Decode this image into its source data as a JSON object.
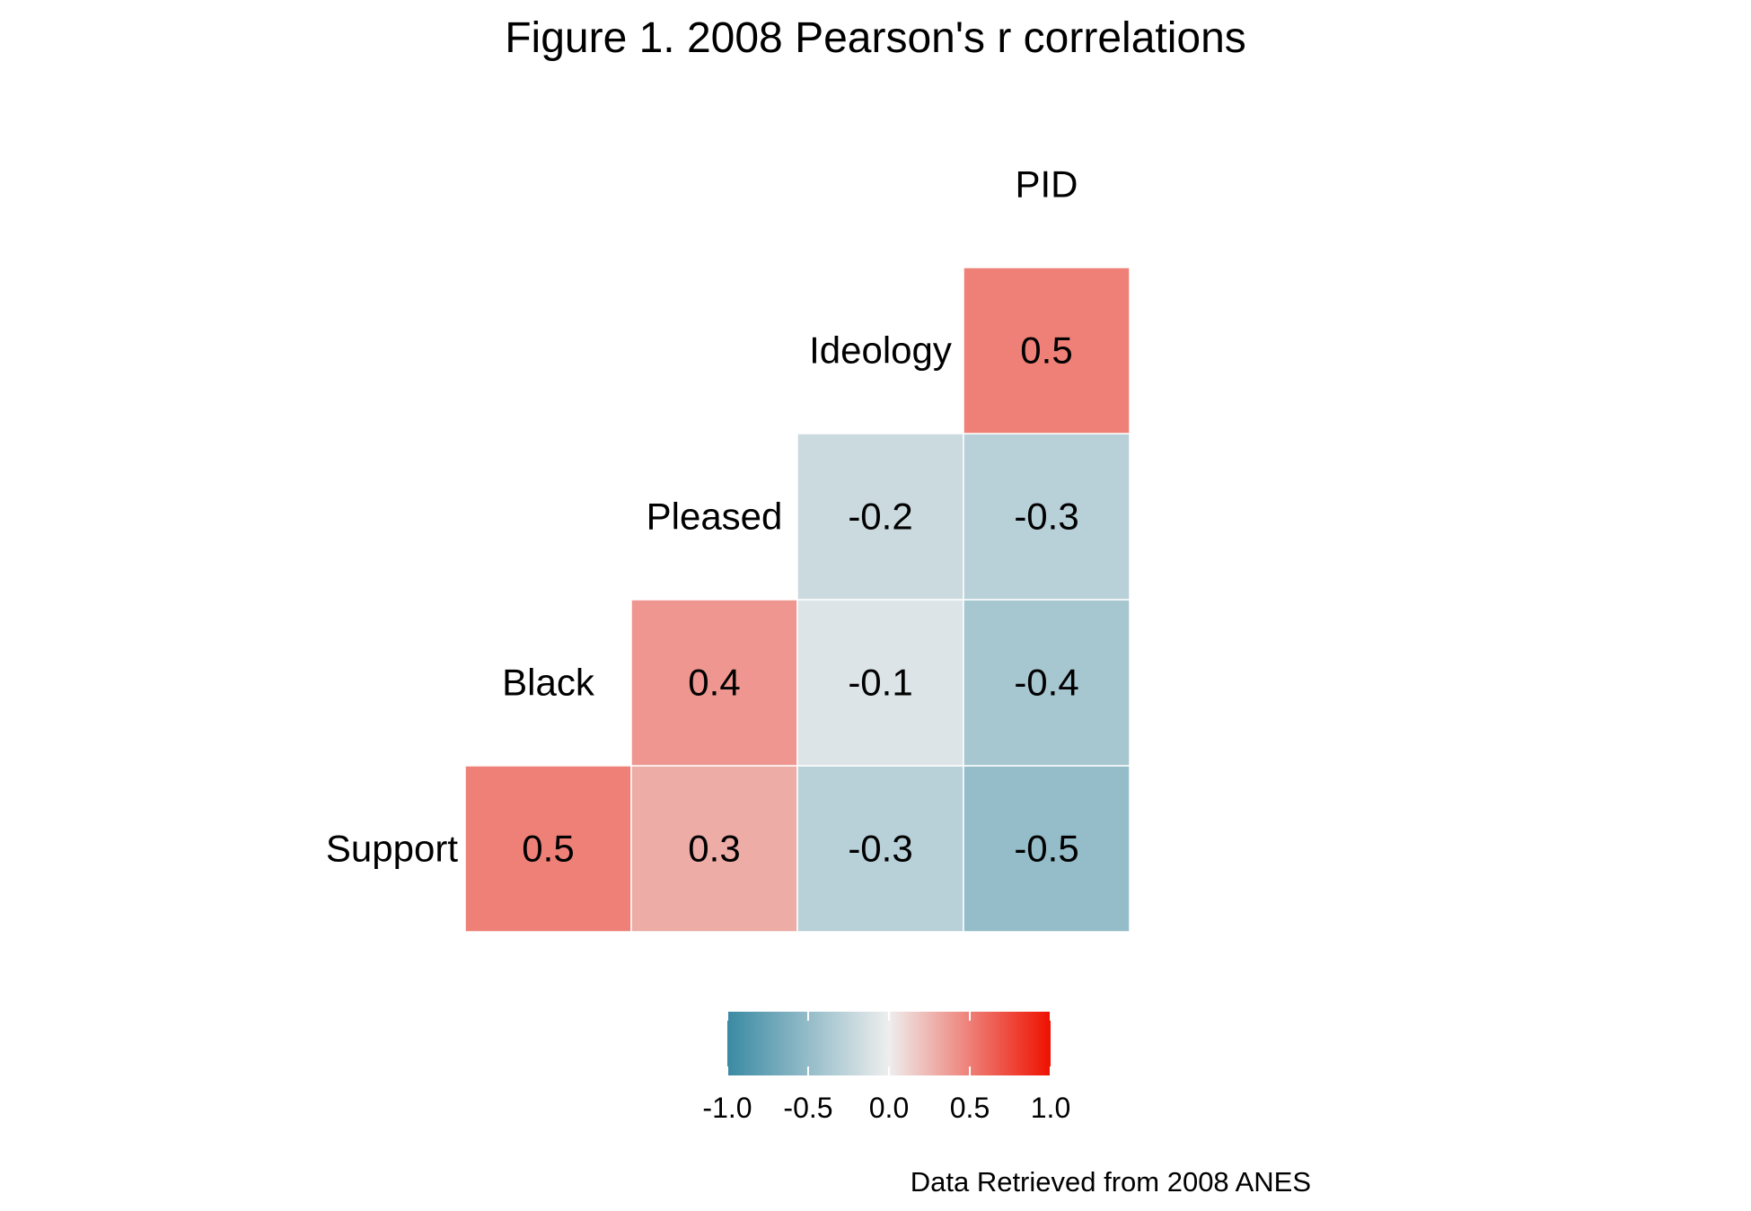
{
  "chart_data": {
    "type": "heatmap",
    "title": "Figure 1. 2008 Pearson's r correlations",
    "caption": "Data Retrieved from 2008 ANES",
    "variables": [
      "Support",
      "Black",
      "Pleased",
      "Ideology",
      "PID"
    ],
    "cells": [
      {
        "row": "Support",
        "col": "Black",
        "value": 0.5,
        "label": "0.5"
      },
      {
        "row": "Support",
        "col": "Pleased",
        "value": 0.3,
        "label": "0.3"
      },
      {
        "row": "Support",
        "col": "Ideology",
        "value": -0.3,
        "label": "-0.3"
      },
      {
        "row": "Support",
        "col": "PID",
        "value": -0.5,
        "label": "-0.5"
      },
      {
        "row": "Black",
        "col": "Pleased",
        "value": 0.4,
        "label": "0.4"
      },
      {
        "row": "Black",
        "col": "Ideology",
        "value": -0.1,
        "label": "-0.1"
      },
      {
        "row": "Black",
        "col": "PID",
        "value": -0.4,
        "label": "-0.4"
      },
      {
        "row": "Pleased",
        "col": "Ideology",
        "value": -0.2,
        "label": "-0.2"
      },
      {
        "row": "Pleased",
        "col": "PID",
        "value": -0.3,
        "label": "-0.3"
      },
      {
        "row": "Ideology",
        "col": "PID",
        "value": 0.5,
        "label": "0.5"
      }
    ],
    "legend": {
      "placement": "bottom",
      "range": [
        -1.0,
        1.0
      ],
      "ticks": [
        "-1.0",
        "-0.5",
        "0.0",
        "0.5",
        "1.0"
      ],
      "colors": {
        "low": "#3a8aa3",
        "mid": "#eeeeee",
        "high": "#ee1100"
      }
    }
  }
}
